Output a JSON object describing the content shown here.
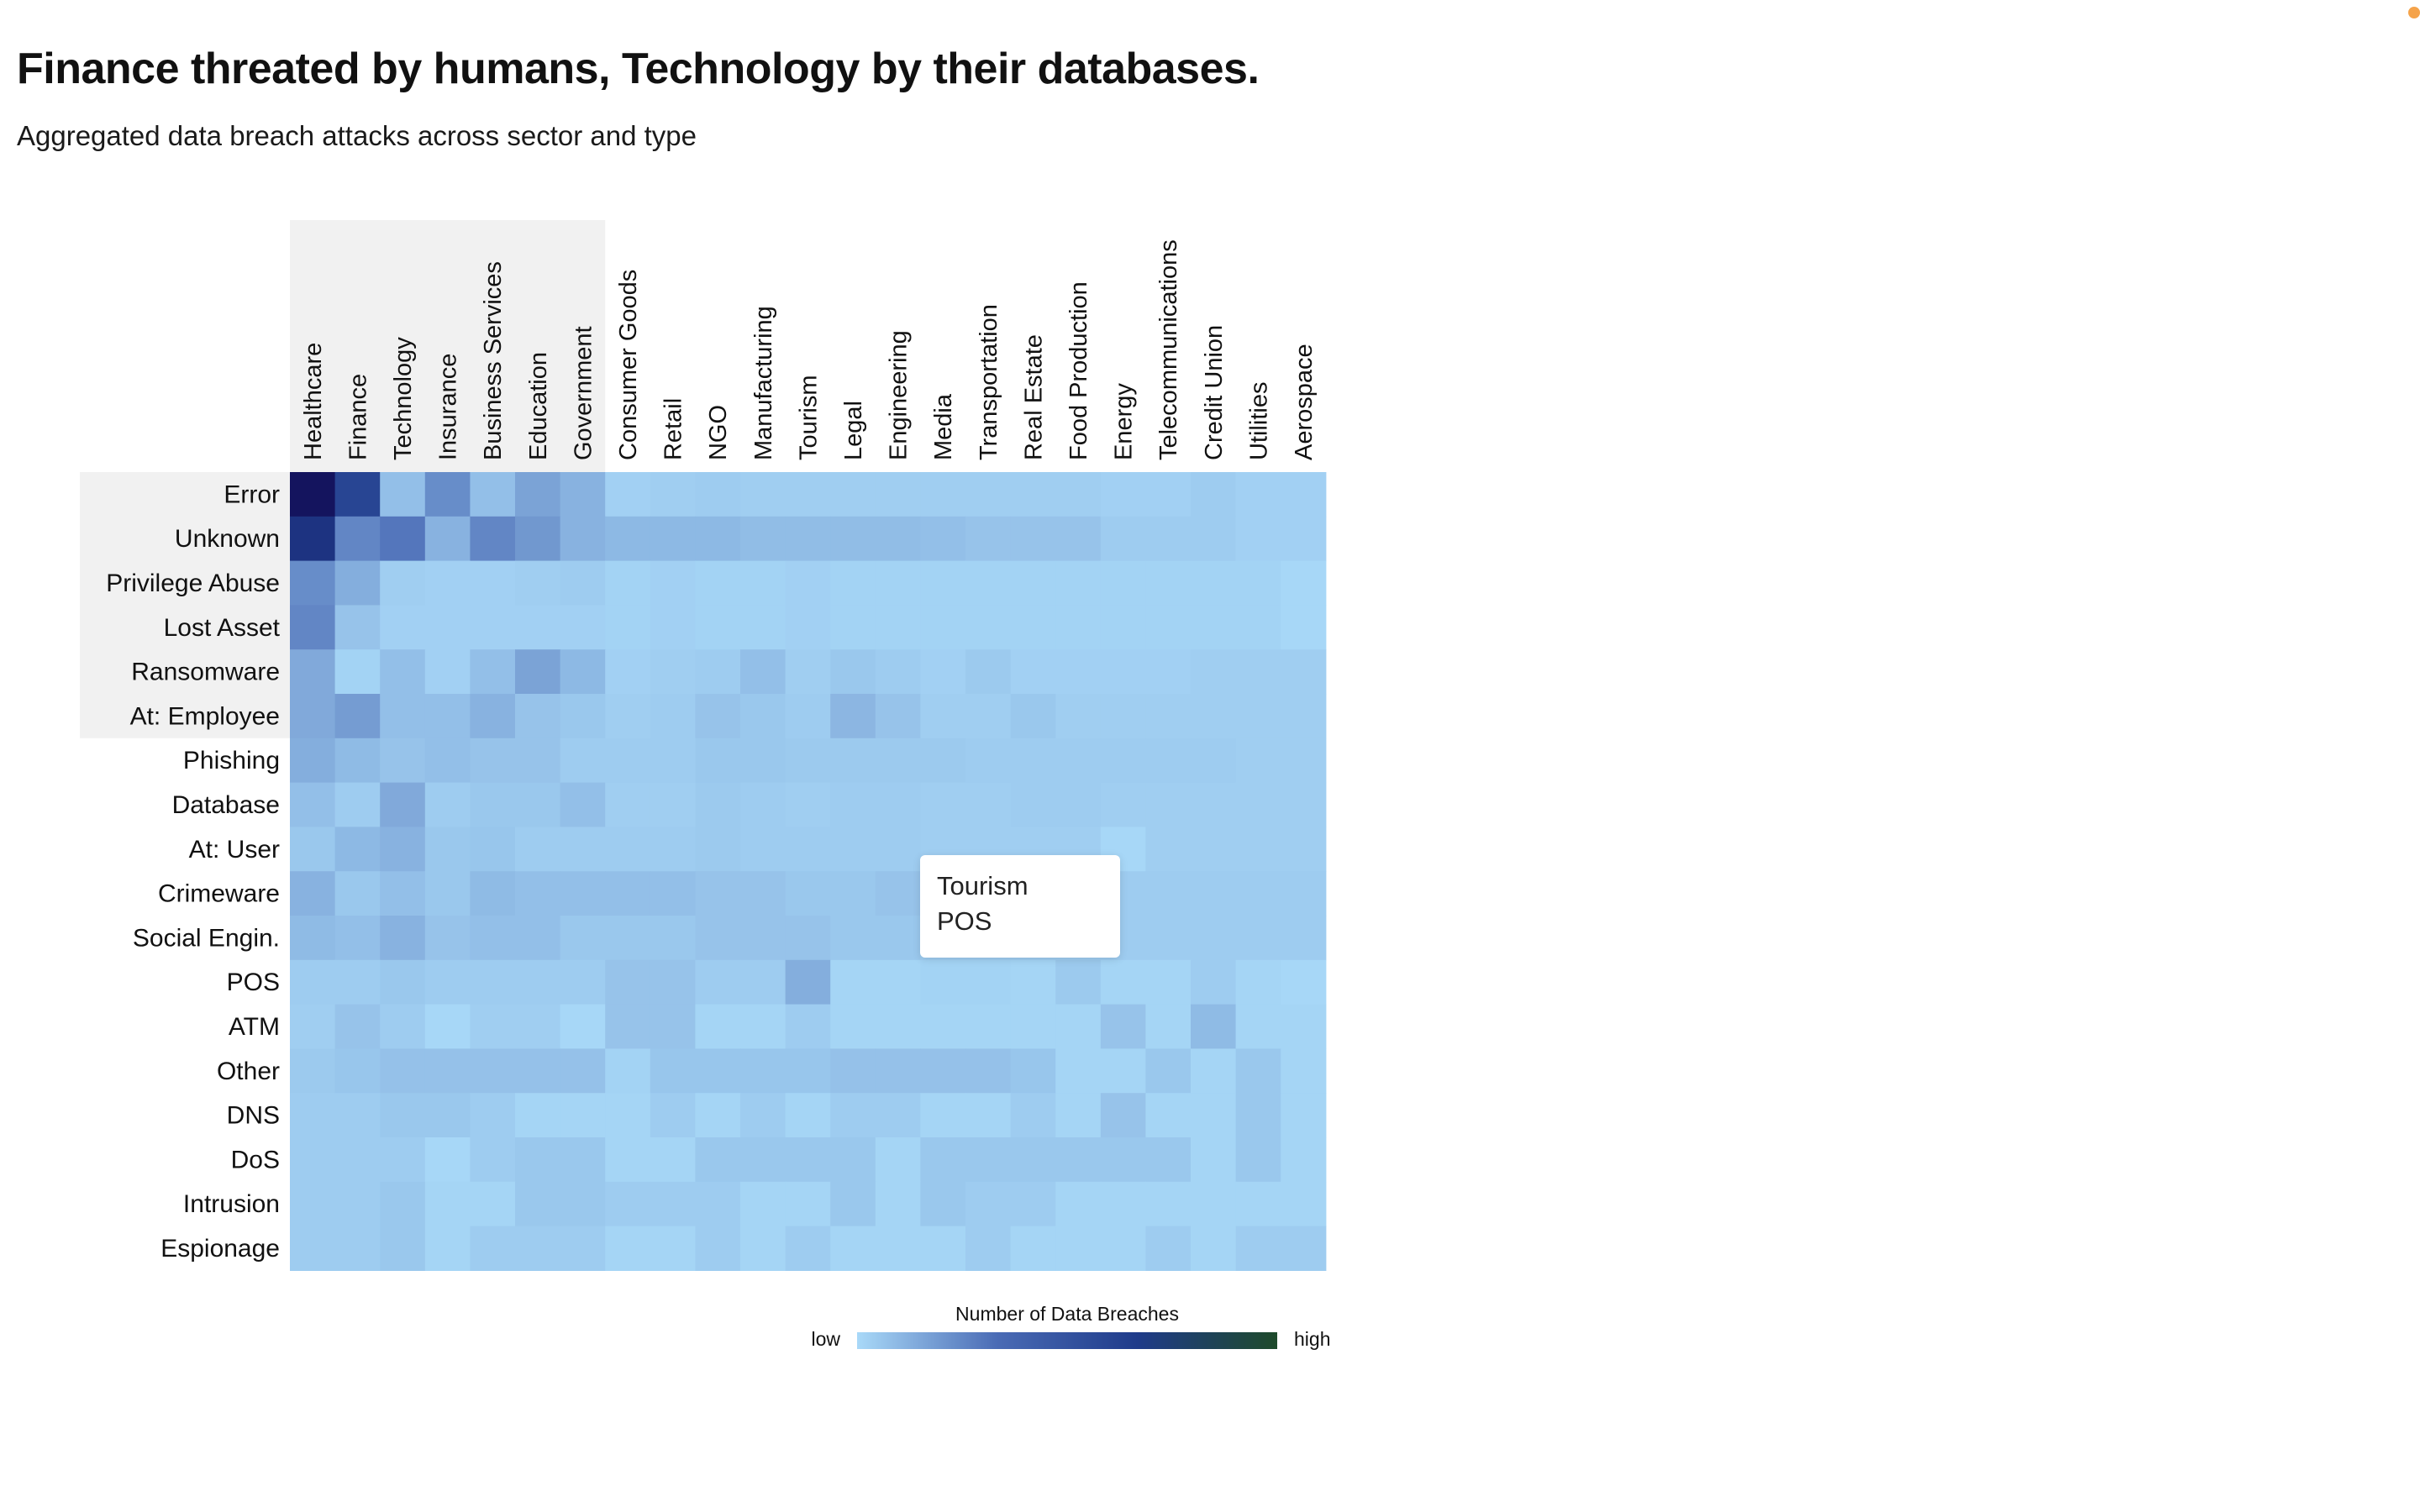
{
  "header": {
    "title": "Finance threated by humans, Technology by their databases.",
    "subtitle": "Aggregated data breach attacks across sector and type"
  },
  "tooltip": {
    "sector": "Tourism",
    "type": "POS"
  },
  "colors": {
    "highlight_band": "#f1f1f1",
    "scale": [
      "#a9d9f8",
      "#7ba3d6",
      "#4a6bb5",
      "#1f3b8a",
      "#14145e"
    ],
    "legend_gradient": [
      "#a9d9f8",
      "#4a6bb5",
      "#1f3b8a",
      "#1e4a2a"
    ]
  },
  "chart_data": {
    "type": "heatmap",
    "x_categories": [
      "Healthcare",
      "Finance",
      "Technology",
      "Insurance",
      "Business Services",
      "Education",
      "Government",
      "Consumer Goods",
      "Retail",
      "NGO",
      "Manufacturing",
      "Tourism",
      "Legal",
      "Engineering",
      "Media",
      "Transportation",
      "Real Estate",
      "Food Production",
      "Energy",
      "Telecommunications",
      "Credit Union",
      "Utilities",
      "Aerospace"
    ],
    "y_categories": [
      "Error",
      "Unknown",
      "Privilege Abuse",
      "Lost Asset",
      "Ransomware",
      "At: Employee",
      "Phishing",
      "Database",
      "At: User",
      "Crimeware",
      "Social Engin.",
      "POS",
      "ATM",
      "Other",
      "DNS",
      "DoS",
      "Intrusion",
      "Espionage"
    ],
    "highlighted_x": [
      "Healthcare",
      "Finance",
      "Technology",
      "Insurance",
      "Business Services",
      "Education",
      "Government"
    ],
    "highlighted_y": [
      "Error",
      "Unknown",
      "Privilege Abuse",
      "Lost Asset",
      "Ransomware",
      "At: Employee"
    ],
    "values": [
      [
        1.0,
        0.7,
        0.12,
        0.35,
        0.12,
        0.25,
        0.18,
        0.04,
        0.05,
        0.06,
        0.05,
        0.05,
        0.05,
        0.05,
        0.05,
        0.05,
        0.05,
        0.05,
        0.04,
        0.04,
        0.06,
        0.04,
        0.04
      ],
      [
        0.8,
        0.38,
        0.45,
        0.18,
        0.38,
        0.3,
        0.18,
        0.15,
        0.15,
        0.15,
        0.13,
        0.13,
        0.13,
        0.13,
        0.12,
        0.1,
        0.1,
        0.1,
        0.06,
        0.06,
        0.06,
        0.04,
        0.04
      ],
      [
        0.35,
        0.2,
        0.05,
        0.04,
        0.04,
        0.05,
        0.06,
        0.03,
        0.04,
        0.03,
        0.03,
        0.04,
        0.03,
        0.03,
        0.03,
        0.03,
        0.03,
        0.03,
        0.03,
        0.03,
        0.03,
        0.03,
        0.01
      ],
      [
        0.38,
        0.1,
        0.04,
        0.04,
        0.04,
        0.04,
        0.04,
        0.03,
        0.04,
        0.03,
        0.03,
        0.04,
        0.03,
        0.03,
        0.03,
        0.03,
        0.03,
        0.03,
        0.03,
        0.03,
        0.03,
        0.03,
        0.01
      ],
      [
        0.22,
        0.03,
        0.12,
        0.04,
        0.12,
        0.25,
        0.15,
        0.04,
        0.05,
        0.06,
        0.12,
        0.05,
        0.08,
        0.06,
        0.04,
        0.07,
        0.04,
        0.04,
        0.04,
        0.04,
        0.05,
        0.05,
        0.05
      ],
      [
        0.22,
        0.28,
        0.12,
        0.12,
        0.18,
        0.1,
        0.08,
        0.05,
        0.06,
        0.1,
        0.08,
        0.06,
        0.16,
        0.1,
        0.05,
        0.05,
        0.08,
        0.05,
        0.05,
        0.05,
        0.05,
        0.05,
        0.05
      ],
      [
        0.2,
        0.14,
        0.1,
        0.12,
        0.1,
        0.1,
        0.06,
        0.06,
        0.06,
        0.08,
        0.08,
        0.07,
        0.07,
        0.07,
        0.07,
        0.06,
        0.06,
        0.06,
        0.06,
        0.06,
        0.06,
        0.05,
        0.05
      ],
      [
        0.12,
        0.06,
        0.22,
        0.06,
        0.08,
        0.08,
        0.12,
        0.05,
        0.05,
        0.07,
        0.06,
        0.05,
        0.06,
        0.06,
        0.05,
        0.05,
        0.06,
        0.06,
        0.05,
        0.05,
        0.05,
        0.05,
        0.05
      ],
      [
        0.08,
        0.15,
        0.18,
        0.08,
        0.09,
        0.06,
        0.06,
        0.06,
        0.06,
        0.07,
        0.06,
        0.06,
        0.06,
        0.06,
        0.05,
        0.05,
        0.05,
        0.05,
        0.01,
        0.05,
        0.05,
        0.05,
        0.05
      ],
      [
        0.18,
        0.08,
        0.12,
        0.08,
        0.14,
        0.12,
        0.12,
        0.12,
        0.12,
        0.1,
        0.1,
        0.08,
        0.08,
        0.1,
        0.06,
        0.06,
        0.06,
        0.06,
        0.06,
        0.06,
        0.06,
        0.06,
        0.06
      ],
      [
        0.14,
        0.12,
        0.18,
        0.1,
        0.12,
        0.12,
        0.08,
        0.08,
        0.08,
        0.1,
        0.1,
        0.1,
        0.08,
        0.08,
        0.06,
        0.06,
        0.06,
        0.06,
        0.06,
        0.06,
        0.06,
        0.06,
        0.06
      ],
      [
        0.06,
        0.06,
        0.08,
        0.06,
        0.06,
        0.06,
        0.06,
        0.1,
        0.1,
        0.06,
        0.06,
        0.2,
        0.02,
        0.02,
        0.03,
        0.03,
        0.02,
        0.07,
        0.02,
        0.02,
        0.06,
        0.02,
        0.01
      ],
      [
        0.05,
        0.1,
        0.06,
        0.01,
        0.05,
        0.05,
        0.01,
        0.1,
        0.1,
        0.02,
        0.02,
        0.06,
        0.02,
        0.02,
        0.02,
        0.02,
        0.02,
        0.02,
        0.1,
        0.02,
        0.14,
        0.02,
        0.02
      ],
      [
        0.07,
        0.09,
        0.11,
        0.11,
        0.11,
        0.11,
        0.11,
        0.03,
        0.09,
        0.09,
        0.09,
        0.09,
        0.11,
        0.11,
        0.11,
        0.11,
        0.09,
        0.02,
        0.02,
        0.08,
        0.02,
        0.08,
        0.02
      ],
      [
        0.06,
        0.06,
        0.08,
        0.08,
        0.06,
        0.02,
        0.02,
        0.02,
        0.06,
        0.02,
        0.06,
        0.02,
        0.06,
        0.06,
        0.02,
        0.02,
        0.06,
        0.02,
        0.1,
        0.02,
        0.02,
        0.08,
        0.02
      ],
      [
        0.06,
        0.06,
        0.06,
        0.01,
        0.06,
        0.08,
        0.08,
        0.02,
        0.02,
        0.08,
        0.08,
        0.08,
        0.08,
        0.02,
        0.08,
        0.08,
        0.08,
        0.08,
        0.08,
        0.08,
        0.02,
        0.08,
        0.02
      ],
      [
        0.06,
        0.06,
        0.08,
        0.02,
        0.02,
        0.08,
        0.08,
        0.06,
        0.06,
        0.06,
        0.02,
        0.02,
        0.08,
        0.02,
        0.08,
        0.06,
        0.06,
        0.02,
        0.02,
        0.02,
        0.02,
        0.02,
        0.02
      ],
      [
        0.06,
        0.06,
        0.08,
        0.02,
        0.06,
        0.06,
        0.06,
        0.02,
        0.02,
        0.06,
        0.02,
        0.06,
        0.02,
        0.02,
        0.02,
        0.06,
        0.02,
        0.02,
        0.02,
        0.06,
        0.02,
        0.06,
        0.06
      ]
    ],
    "legend": {
      "title": "Number of Data Breaches",
      "low_label": "low",
      "high_label": "high"
    }
  }
}
